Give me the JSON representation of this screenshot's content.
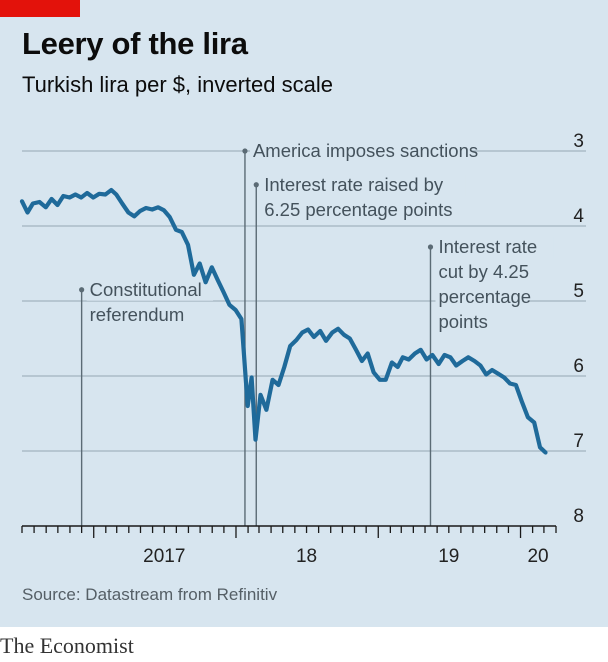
{
  "header": {
    "title": "Leery of the lira",
    "subtitle": "Turkish lira per $, inverted scale"
  },
  "footer": {
    "source": "Source: Datastream from Refinitiv",
    "brand": "The Economist"
  },
  "colors": {
    "line": "#1f6a9a",
    "accent_red": "#e3120b",
    "background": "#d7e5ef",
    "gridline": "#a2b3bf",
    "annotation": "#5b6b75"
  },
  "chart_data": {
    "type": "line",
    "title": "Leery of the lira",
    "subtitle": "Turkish lira per $, inverted scale",
    "ylabel": "",
    "xlabel": "",
    "y_inverted": true,
    "ylim": [
      3,
      8
    ],
    "xlim": [
      "2016-07-01",
      "2020-04-01"
    ],
    "grid": true,
    "y_ticks": [
      3,
      4,
      5,
      6,
      7,
      8
    ],
    "x_tick_labels": [
      {
        "label": "2017",
        "date": "2017-07-01"
      },
      {
        "label": "18",
        "date": "2018-07-01"
      },
      {
        "label": "19",
        "date": "2019-07-01"
      },
      {
        "label": "20",
        "date": "2020-02-15"
      }
    ],
    "series": [
      {
        "points": [
          [
            "2016-07-01",
            3.67
          ],
          [
            "2016-07-15",
            3.82
          ],
          [
            "2016-07-29",
            3.7
          ],
          [
            "2016-08-15",
            3.68
          ],
          [
            "2016-08-31",
            3.75
          ],
          [
            "2016-09-15",
            3.64
          ],
          [
            "2016-09-30",
            3.72
          ],
          [
            "2016-10-15",
            3.6
          ],
          [
            "2016-10-31",
            3.62
          ],
          [
            "2016-11-15",
            3.58
          ],
          [
            "2016-11-30",
            3.62
          ],
          [
            "2016-12-15",
            3.56
          ],
          [
            "2016-12-31",
            3.62
          ],
          [
            "2017-01-15",
            3.57
          ],
          [
            "2017-01-31",
            3.58
          ],
          [
            "2017-02-15",
            3.52
          ],
          [
            "2017-02-28",
            3.58
          ],
          [
            "2017-03-15",
            3.7
          ],
          [
            "2017-03-31",
            3.82
          ],
          [
            "2017-04-15",
            3.87
          ],
          [
            "2017-04-30",
            3.8
          ],
          [
            "2017-05-15",
            3.76
          ],
          [
            "2017-05-31",
            3.78
          ],
          [
            "2017-06-15",
            3.75
          ],
          [
            "2017-06-30",
            3.79
          ],
          [
            "2017-07-15",
            3.88
          ],
          [
            "2017-07-31",
            4.05
          ],
          [
            "2017-08-15",
            4.08
          ],
          [
            "2017-08-31",
            4.25
          ],
          [
            "2017-09-15",
            4.65
          ],
          [
            "2017-09-30",
            4.5
          ],
          [
            "2017-10-15",
            4.75
          ],
          [
            "2017-10-31",
            4.55
          ],
          [
            "2017-11-15",
            4.72
          ],
          [
            "2017-11-30",
            4.88
          ],
          [
            "2017-12-15",
            5.05
          ],
          [
            "2017-12-31",
            5.12
          ],
          [
            "2018-01-15",
            5.24
          ],
          [
            "2018-01-31",
            6.4
          ],
          [
            "2018-02-10",
            6.02
          ],
          [
            "2018-02-20",
            6.85
          ],
          [
            "2018-03-05",
            6.25
          ],
          [
            "2018-03-20",
            6.45
          ],
          [
            "2018-04-05",
            6.05
          ],
          [
            "2018-04-20",
            6.12
          ],
          [
            "2018-05-05",
            5.88
          ],
          [
            "2018-05-20",
            5.6
          ],
          [
            "2018-06-05",
            5.52
          ],
          [
            "2018-06-20",
            5.42
          ],
          [
            "2018-07-05",
            5.38
          ],
          [
            "2018-07-20",
            5.48
          ],
          [
            "2018-08-05",
            5.4
          ],
          [
            "2018-08-20",
            5.53
          ],
          [
            "2018-09-05",
            5.42
          ],
          [
            "2018-09-20",
            5.37
          ],
          [
            "2018-10-05",
            5.45
          ],
          [
            "2018-10-20",
            5.5
          ],
          [
            "2018-11-05",
            5.65
          ],
          [
            "2018-11-20",
            5.8
          ],
          [
            "2018-12-05",
            5.7
          ],
          [
            "2018-12-20",
            5.95
          ],
          [
            "2019-01-05",
            6.05
          ],
          [
            "2019-01-20",
            6.05
          ],
          [
            "2019-02-05",
            5.82
          ],
          [
            "2019-02-20",
            5.88
          ],
          [
            "2019-03-05",
            5.75
          ],
          [
            "2019-03-20",
            5.78
          ],
          [
            "2019-04-05",
            5.7
          ],
          [
            "2019-04-20",
            5.65
          ],
          [
            "2019-05-05",
            5.78
          ],
          [
            "2019-05-20",
            5.72
          ],
          [
            "2019-06-05",
            5.84
          ],
          [
            "2019-06-20",
            5.72
          ],
          [
            "2019-07-05",
            5.75
          ],
          [
            "2019-07-20",
            5.86
          ],
          [
            "2019-08-05",
            5.8
          ],
          [
            "2019-08-20",
            5.75
          ],
          [
            "2019-09-05",
            5.8
          ],
          [
            "2019-09-20",
            5.86
          ],
          [
            "2019-10-05",
            5.98
          ],
          [
            "2019-10-20",
            5.92
          ],
          [
            "2019-11-05",
            5.97
          ],
          [
            "2019-11-20",
            6.02
          ],
          [
            "2019-12-05",
            6.1
          ],
          [
            "2019-12-20",
            6.12
          ],
          [
            "2020-01-05",
            6.35
          ],
          [
            "2020-01-20",
            6.55
          ],
          [
            "2020-02-05",
            6.62
          ],
          [
            "2020-02-20",
            6.95
          ],
          [
            "2020-03-05",
            7.02
          ]
        ]
      }
    ],
    "annotations": [
      {
        "lines": [
          "America imposes sanctions"
        ],
        "date": "2018-01-24",
        "value": 3.0,
        "side": "right"
      },
      {
        "lines": [
          "Interest rate raised by",
          "6.25 percentage points"
        ],
        "date": "2018-02-22",
        "value": 3.45,
        "side": "right"
      },
      {
        "lines": [
          "Interest rate",
          "cut by 4.25",
          "percentage",
          "points"
        ],
        "date": "2019-05-15",
        "value": 4.28,
        "side": "right"
      },
      {
        "lines": [
          "Constitutional",
          "referendum"
        ],
        "date": "2016-12-01",
        "value": 4.85,
        "side": "right"
      }
    ]
  }
}
